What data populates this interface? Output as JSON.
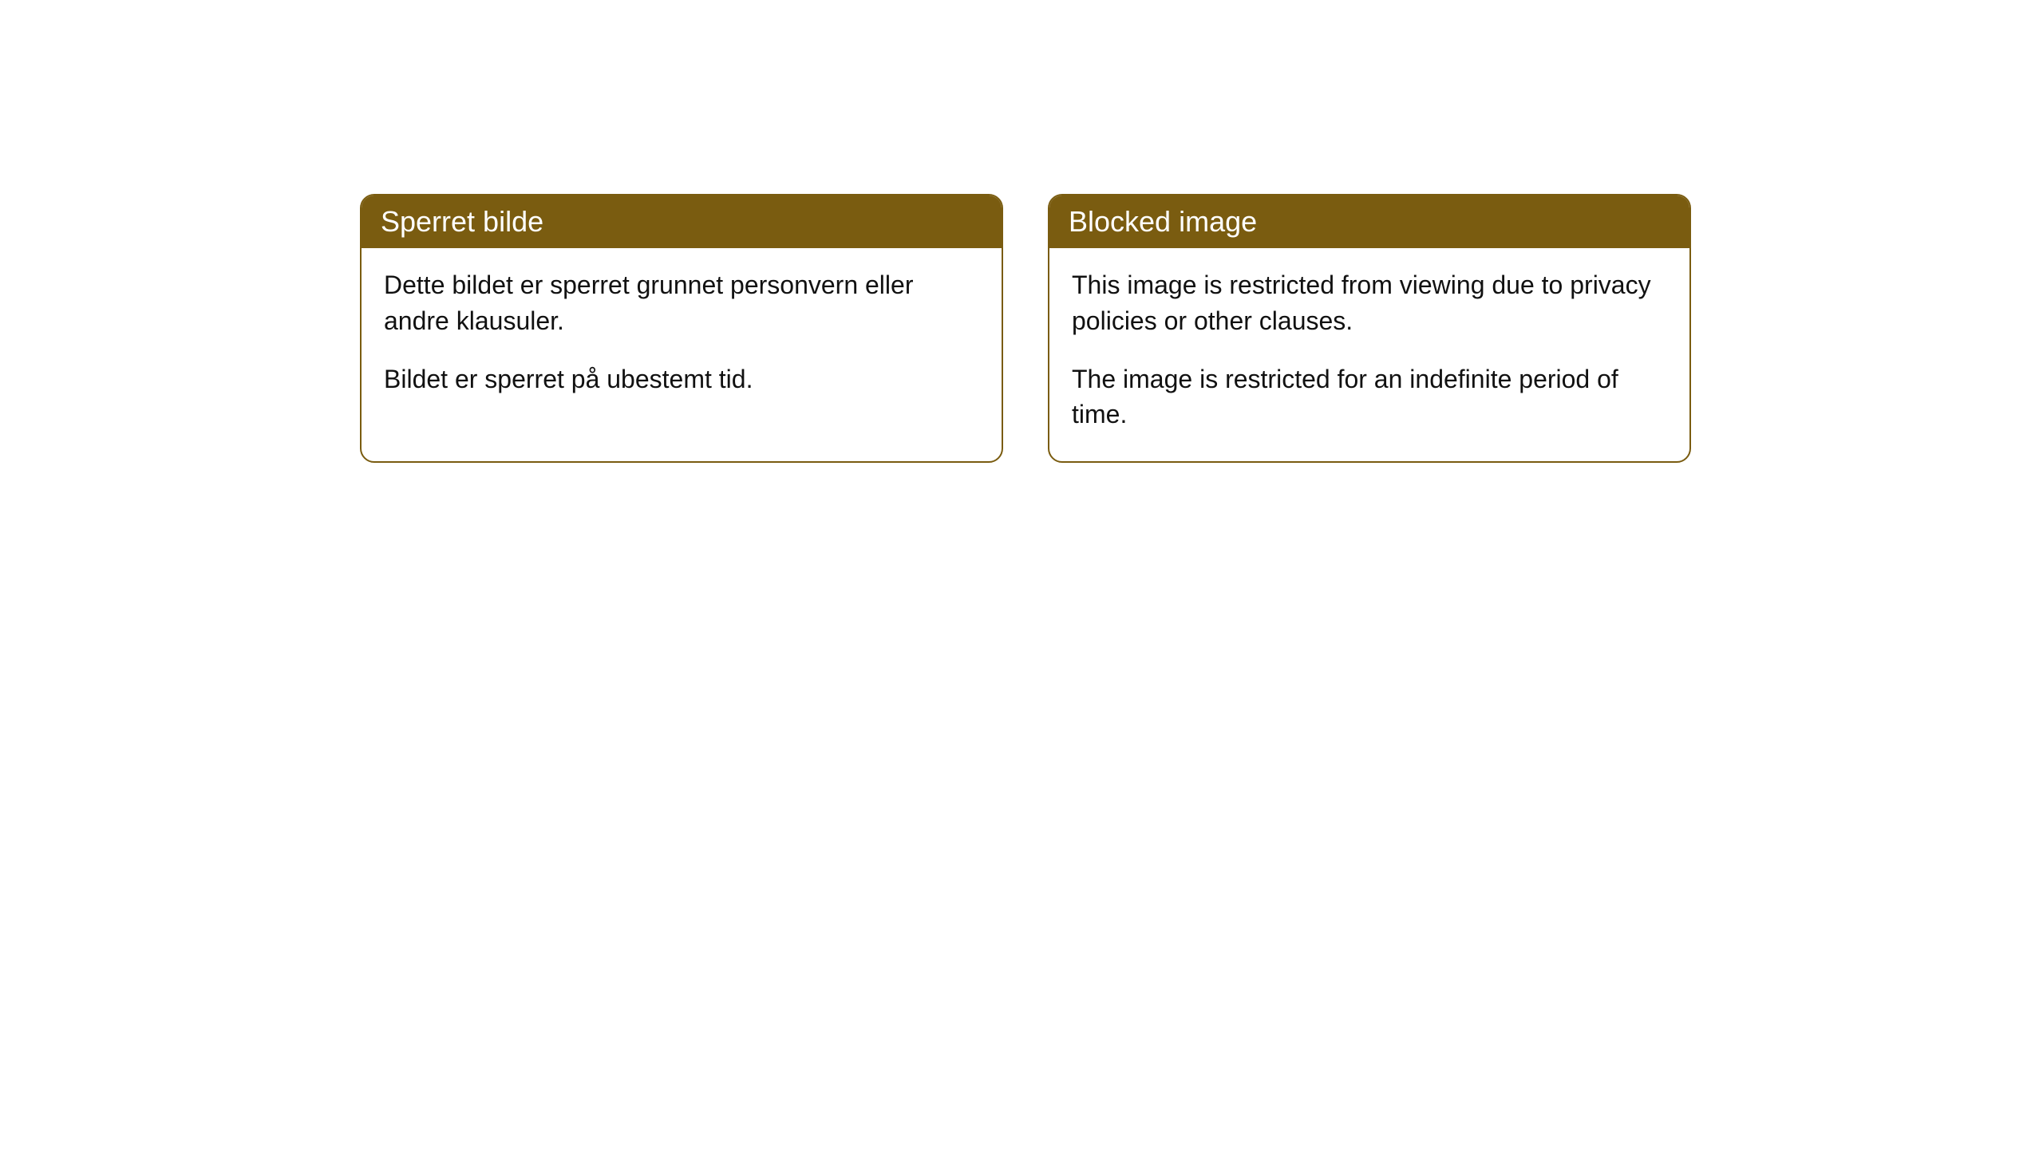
{
  "cards": [
    {
      "title": "Sperret bilde",
      "paragraph1": "Dette bildet er sperret grunnet personvern eller andre klausuler.",
      "paragraph2": "Bildet er sperret på ubestemt tid."
    },
    {
      "title": "Blocked image",
      "paragraph1": "This image is restricted from viewing due to privacy policies or other clauses.",
      "paragraph2": "The image is restricted for an indefinite period of time."
    }
  ],
  "style": {
    "header_bg": "#7a5c10",
    "header_text_color": "#ffffff",
    "body_text_color": "#111111",
    "border_color": "#7a5c10",
    "card_bg": "#ffffff",
    "border_radius": 18,
    "header_fontsize": 36,
    "body_fontsize": 32
  }
}
